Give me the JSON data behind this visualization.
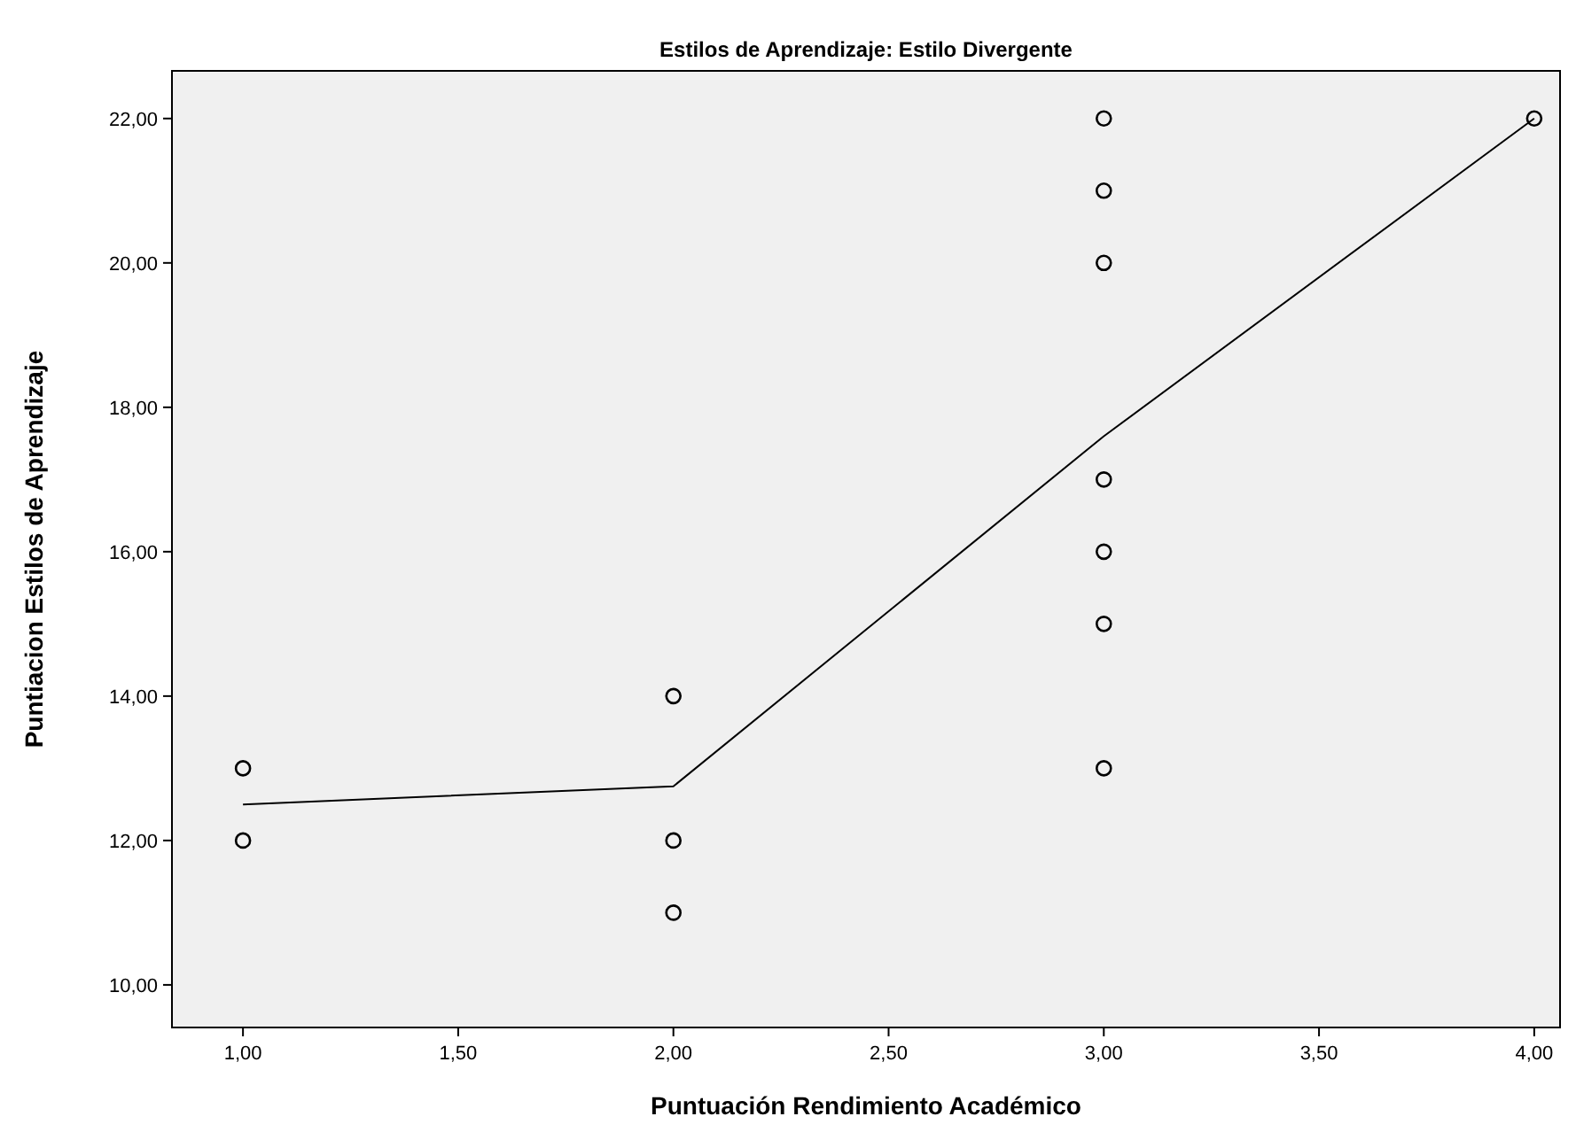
{
  "chart_data": {
    "type": "scatter",
    "title": "Estilos de Aprendizaje: Estilo Divergente",
    "xlabel": "Puntuación Rendimiento Académico",
    "ylabel": "Puntiacion Estilos de Aprendizaje",
    "marker": "circle",
    "grid": false,
    "xlim": [
      0.835,
      4.06
    ],
    "ylim": [
      9.41,
      22.66
    ],
    "xticks": [
      {
        "value": 1,
        "label": "1,00"
      },
      {
        "value": 1.5,
        "label": "1,50"
      },
      {
        "value": 2,
        "label": "2,00"
      },
      {
        "value": 2.5,
        "label": "2,50"
      },
      {
        "value": 3,
        "label": "3,00"
      },
      {
        "value": 3.5,
        "label": "3,50"
      },
      {
        "value": 4,
        "label": "4,00"
      }
    ],
    "yticks": [
      {
        "value": 10,
        "label": "10,00"
      },
      {
        "value": 12,
        "label": "12,00"
      },
      {
        "value": 14,
        "label": "14,00"
      },
      {
        "value": 16,
        "label": "16,00"
      },
      {
        "value": 18,
        "label": "18,00"
      },
      {
        "value": 20,
        "label": "20,00"
      },
      {
        "value": 22,
        "label": "22,00"
      }
    ],
    "series": [
      {
        "color": "#000000",
        "x": [
          1,
          1,
          2,
          2,
          2,
          3,
          3,
          3,
          3,
          3,
          3,
          3,
          4
        ],
        "values": [
          12,
          13,
          11,
          12,
          14,
          13,
          15,
          16,
          17,
          20,
          21,
          22,
          22
        ]
      },
      {
        "type": "line",
        "color": "#000000",
        "marker": "none",
        "x": [
          1,
          2,
          3,
          4
        ],
        "values": [
          12.5,
          12.75,
          17.6,
          22
        ]
      }
    ]
  }
}
